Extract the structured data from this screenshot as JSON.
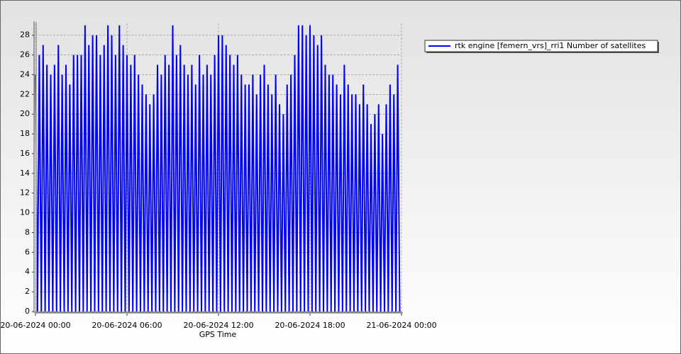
{
  "chart_data": {
    "type": "line",
    "xlabel": "GPS Time",
    "xlim": [
      "20-06-2024 00:00",
      "21-06-2024 00:00"
    ],
    "xticks": [
      {
        "value": "20-06-2024 00:00",
        "label": "20-06-2024 00:00"
      },
      {
        "value": "20-06-2024 06:00",
        "label": "20-06-2024 06:00"
      },
      {
        "value": "20-06-2024 12:00",
        "label": "20-06-2024 12:00"
      },
      {
        "value": "20-06-2024 18:00",
        "label": "20-06-2024 18:00"
      },
      {
        "value": "21-06-2024 00:00",
        "label": "21-06-2024 00:00"
      }
    ],
    "ylim": [
      0,
      29.2
    ],
    "yticks": [
      0,
      2,
      4,
      6,
      8,
      10,
      12,
      14,
      16,
      18,
      20,
      22,
      24,
      26,
      28
    ],
    "grid": true,
    "legend": "upper right",
    "x": [
      "20-06-2024 00:00",
      "20-06-2024 00:08",
      "20-06-2024 00:15",
      "20-06-2024 00:23",
      "20-06-2024 00:30",
      "20-06-2024 00:38",
      "20-06-2024 00:45",
      "20-06-2024 00:53",
      "20-06-2024 01:00",
      "20-06-2024 01:08",
      "20-06-2024 01:15",
      "20-06-2024 01:23",
      "20-06-2024 01:30",
      "20-06-2024 01:38",
      "20-06-2024 01:45",
      "20-06-2024 01:53",
      "20-06-2024 02:00",
      "20-06-2024 02:08",
      "20-06-2024 02:15",
      "20-06-2024 02:23",
      "20-06-2024 02:30",
      "20-06-2024 02:38",
      "20-06-2024 02:45",
      "20-06-2024 02:53",
      "20-06-2024 03:00",
      "20-06-2024 03:08",
      "20-06-2024 03:15",
      "20-06-2024 03:23",
      "20-06-2024 03:30",
      "20-06-2024 03:38",
      "20-06-2024 03:45",
      "20-06-2024 03:53",
      "20-06-2024 04:00",
      "20-06-2024 04:08",
      "20-06-2024 04:15",
      "20-06-2024 04:23",
      "20-06-2024 04:30",
      "20-06-2024 04:38",
      "20-06-2024 04:45",
      "20-06-2024 04:53",
      "20-06-2024 05:00",
      "20-06-2024 05:08",
      "20-06-2024 05:15",
      "20-06-2024 05:23",
      "20-06-2024 05:30",
      "20-06-2024 05:38",
      "20-06-2024 05:45",
      "20-06-2024 05:53",
      "20-06-2024 06:00",
      "20-06-2024 06:08",
      "20-06-2024 06:15",
      "20-06-2024 06:23",
      "20-06-2024 06:30",
      "20-06-2024 06:38",
      "20-06-2024 06:45",
      "20-06-2024 06:53",
      "20-06-2024 07:00",
      "20-06-2024 07:08",
      "20-06-2024 07:15",
      "20-06-2024 07:23",
      "20-06-2024 07:30",
      "20-06-2024 07:38",
      "20-06-2024 07:45",
      "20-06-2024 07:53",
      "20-06-2024 08:00",
      "20-06-2024 08:08",
      "20-06-2024 08:15",
      "20-06-2024 08:23",
      "20-06-2024 08:30",
      "20-06-2024 08:38",
      "20-06-2024 08:45",
      "20-06-2024 08:53",
      "20-06-2024 09:00",
      "20-06-2024 09:08",
      "20-06-2024 09:15",
      "20-06-2024 09:23",
      "20-06-2024 09:30",
      "20-06-2024 09:38",
      "20-06-2024 09:45",
      "20-06-2024 09:53",
      "20-06-2024 10:00",
      "20-06-2024 10:08",
      "20-06-2024 10:15",
      "20-06-2024 10:23",
      "20-06-2024 10:30",
      "20-06-2024 10:38",
      "20-06-2024 10:45",
      "20-06-2024 10:53",
      "20-06-2024 11:00",
      "20-06-2024 11:08",
      "20-06-2024 11:15",
      "20-06-2024 11:23",
      "20-06-2024 11:30",
      "20-06-2024 11:38",
      "20-06-2024 11:45",
      "20-06-2024 11:53",
      "20-06-2024 12:00",
      "20-06-2024 12:08",
      "20-06-2024 12:15",
      "20-06-2024 12:23",
      "20-06-2024 12:30",
      "20-06-2024 12:38",
      "20-06-2024 12:45",
      "20-06-2024 12:53",
      "20-06-2024 13:00",
      "20-06-2024 13:08",
      "20-06-2024 13:15",
      "20-06-2024 13:23",
      "20-06-2024 13:30",
      "20-06-2024 13:38",
      "20-06-2024 13:45",
      "20-06-2024 13:53",
      "20-06-2024 14:00",
      "20-06-2024 14:08",
      "20-06-2024 14:15",
      "20-06-2024 14:23",
      "20-06-2024 14:30",
      "20-06-2024 14:38",
      "20-06-2024 14:45",
      "20-06-2024 14:53",
      "20-06-2024 15:00",
      "20-06-2024 15:08",
      "20-06-2024 15:15",
      "20-06-2024 15:23",
      "20-06-2024 15:30",
      "20-06-2024 15:38",
      "20-06-2024 15:45",
      "20-06-2024 15:53",
      "20-06-2024 16:00",
      "20-06-2024 16:08",
      "20-06-2024 16:15",
      "20-06-2024 16:23",
      "20-06-2024 16:30",
      "20-06-2024 16:38",
      "20-06-2024 16:45",
      "20-06-2024 16:53",
      "20-06-2024 17:00",
      "20-06-2024 17:08",
      "20-06-2024 17:15",
      "20-06-2024 17:23",
      "20-06-2024 17:30",
      "20-06-2024 17:38",
      "20-06-2024 17:45",
      "20-06-2024 17:53",
      "20-06-2024 18:00",
      "20-06-2024 18:08",
      "20-06-2024 18:15",
      "20-06-2024 18:23",
      "20-06-2024 18:30",
      "20-06-2024 18:38",
      "20-06-2024 18:45",
      "20-06-2024 18:53",
      "20-06-2024 19:00",
      "20-06-2024 19:08",
      "20-06-2024 19:15",
      "20-06-2024 19:23",
      "20-06-2024 19:30",
      "20-06-2024 19:38",
      "20-06-2024 19:45",
      "20-06-2024 19:53",
      "20-06-2024 20:00",
      "20-06-2024 20:08",
      "20-06-2024 20:15",
      "20-06-2024 20:23",
      "20-06-2024 20:30",
      "20-06-2024 20:38",
      "20-06-2024 20:45",
      "20-06-2024 20:53",
      "20-06-2024 21:00",
      "20-06-2024 21:08",
      "20-06-2024 21:15",
      "20-06-2024 21:23",
      "20-06-2024 21:30",
      "20-06-2024 21:38",
      "20-06-2024 21:45",
      "20-06-2024 21:53",
      "20-06-2024 22:00",
      "20-06-2024 22:08",
      "20-06-2024 22:15",
      "20-06-2024 22:23",
      "20-06-2024 22:30",
      "20-06-2024 22:38",
      "20-06-2024 22:45",
      "20-06-2024 22:53",
      "20-06-2024 23:00",
      "20-06-2024 23:08",
      "20-06-2024 23:15",
      "20-06-2024 23:23",
      "20-06-2024 23:30",
      "20-06-2024 23:38",
      "20-06-2024 23:45",
      "20-06-2024 23:53"
    ],
    "series": [
      {
        "name": "rtk engine [femern_vrs]_rri1 Number of satellites",
        "color": "#0000ff",
        "values": [
          24,
          0,
          26,
          0,
          27,
          0,
          25,
          0,
          24,
          0,
          25,
          0,
          27,
          0,
          24,
          0,
          25,
          0,
          23,
          0,
          26,
          0,
          26,
          0,
          26,
          0,
          29,
          0,
          27,
          0,
          28,
          0,
          28,
          0,
          26,
          0,
          27,
          0,
          29,
          0,
          28,
          0,
          26,
          0,
          29,
          0,
          27,
          0,
          26,
          0,
          25,
          0,
          26,
          0,
          24,
          0,
          23,
          0,
          22,
          0,
          21,
          0,
          22,
          0,
          25,
          0,
          24,
          0,
          26,
          0,
          25,
          0,
          29,
          0,
          26,
          0,
          27,
          0,
          25,
          0,
          24,
          0,
          25,
          0,
          23,
          0,
          26,
          0,
          24,
          0,
          25,
          0,
          24,
          0,
          26,
          0,
          28,
          0,
          28,
          0,
          27,
          0,
          26,
          0,
          25,
          0,
          26,
          0,
          24,
          0,
          23,
          0,
          23,
          0,
          24,
          0,
          22,
          0,
          24,
          0,
          25,
          0,
          23,
          0,
          22,
          0,
          24,
          0,
          21,
          0,
          20,
          0,
          23,
          0,
          24,
          0,
          26,
          0,
          29,
          0,
          29,
          0,
          28,
          0,
          29,
          0,
          28,
          0,
          27,
          0,
          28,
          0,
          25,
          0,
          24,
          0,
          24,
          0,
          23,
          0,
          22,
          0,
          25,
          0,
          23,
          0,
          22,
          0,
          22,
          0,
          21,
          0,
          23,
          0,
          21,
          0,
          19,
          0,
          20,
          0,
          21,
          0,
          18,
          0,
          21,
          0,
          23,
          0,
          22,
          0,
          25,
          0
        ]
      }
    ]
  }
}
